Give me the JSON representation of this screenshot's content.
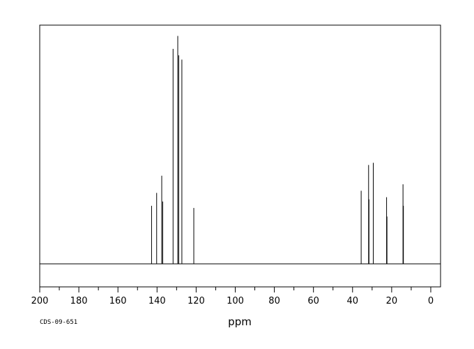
{
  "chart_data": {
    "type": "line",
    "title": "",
    "xlabel": "ppm",
    "ylabel": "",
    "xlim": [
      200,
      -5
    ],
    "ylim": [
      0,
      100
    ],
    "x_reversed": true,
    "grid": false,
    "x_ticks": [
      200,
      180,
      160,
      140,
      120,
      100,
      80,
      60,
      40,
      20,
      0
    ],
    "x_tick_labels": [
      "200",
      "180",
      "160",
      "140",
      "120",
      "100",
      "80",
      "60",
      "40",
      "20",
      "0"
    ],
    "baseline": 0,
    "peaks": [
      {
        "x": 142.8,
        "y": 27
      },
      {
        "x": 140.2,
        "y": 33
      },
      {
        "x": 137.6,
        "y": 41
      },
      {
        "x": 137.1,
        "y": 29
      },
      {
        "x": 131.8,
        "y": 100
      },
      {
        "x": 129.4,
        "y": 106
      },
      {
        "x": 128.9,
        "y": 97
      },
      {
        "x": 127.3,
        "y": 95
      },
      {
        "x": 121.2,
        "y": 26
      },
      {
        "x": 35.6,
        "y": 34
      },
      {
        "x": 31.8,
        "y": 46
      },
      {
        "x": 31.6,
        "y": 30
      },
      {
        "x": 29.4,
        "y": 47
      },
      {
        "x": 22.6,
        "y": 31
      },
      {
        "x": 22.4,
        "y": 22
      },
      {
        "x": 14.2,
        "y": 37
      },
      {
        "x": 14.0,
        "y": 27
      }
    ],
    "annotation": "CDS-09-651"
  }
}
